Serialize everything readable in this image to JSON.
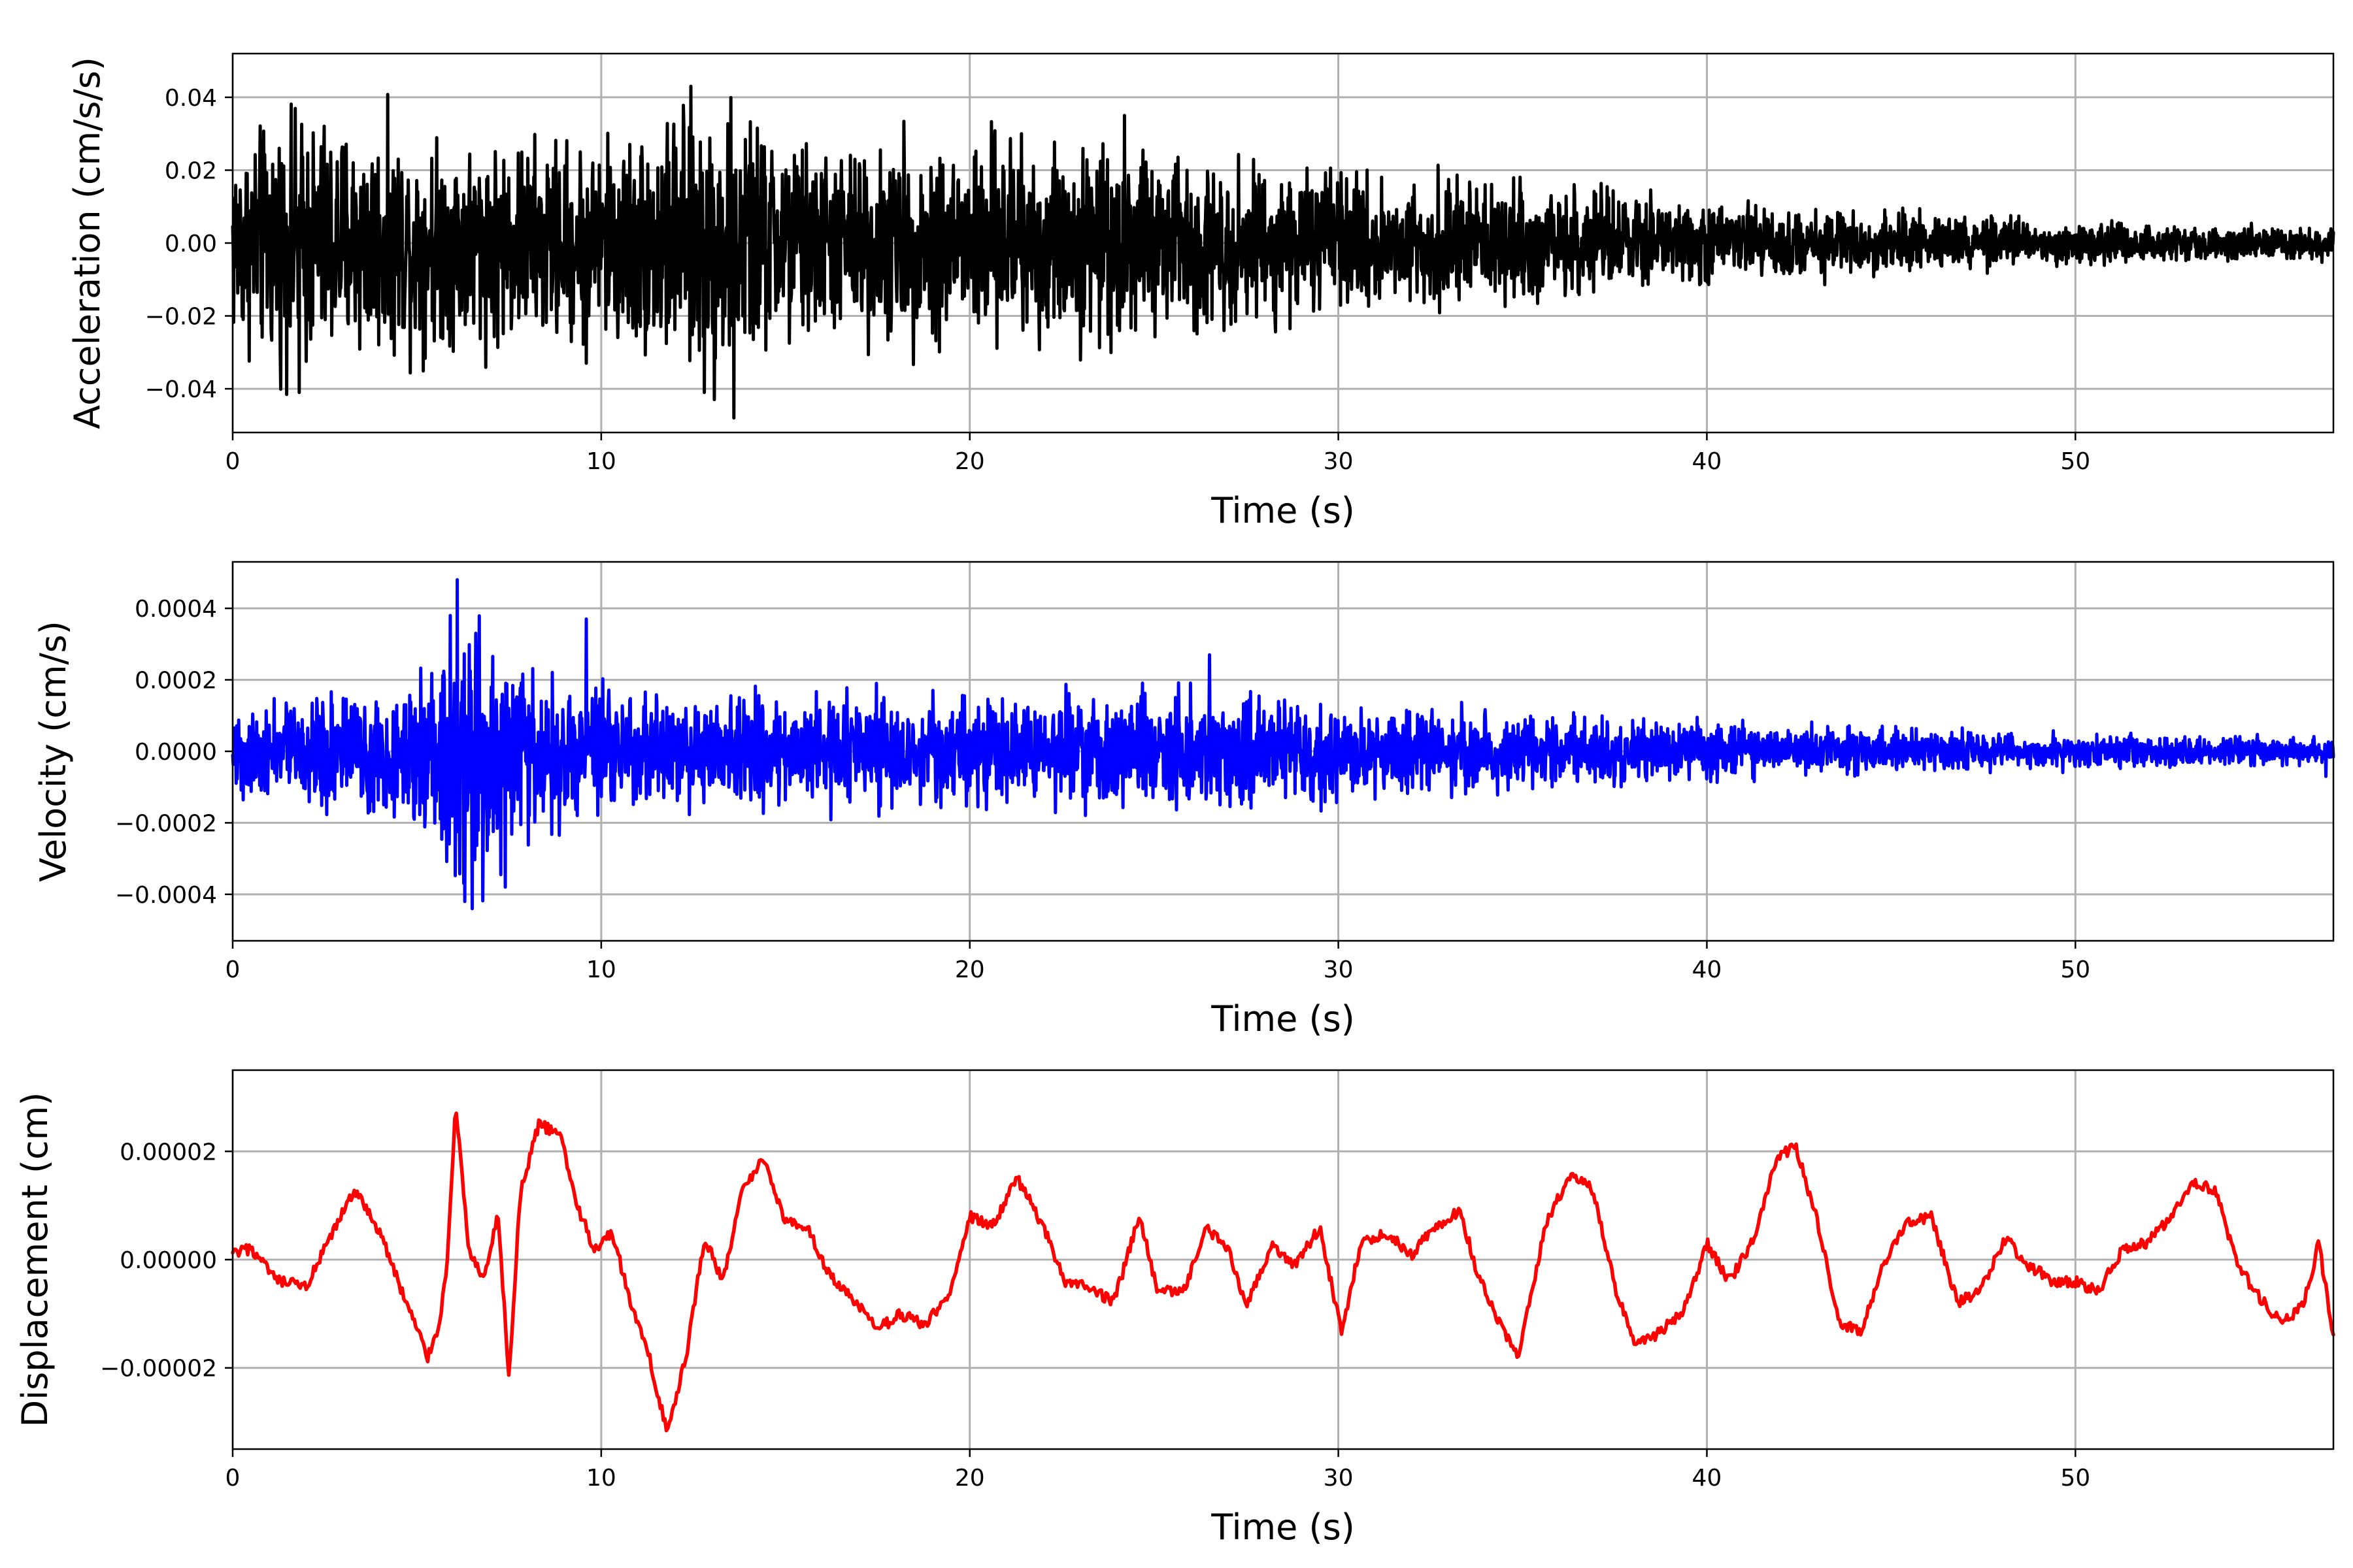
{
  "chart_data": [
    {
      "type": "line",
      "xlabel": "Time (s)",
      "ylabel": "Acceleration (cm/s/s)",
      "xlim": [
        0,
        57
      ],
      "ylim": [
        -0.052,
        0.052
      ],
      "xticks": [
        0,
        10,
        20,
        30,
        40,
        50
      ],
      "xtick_labels": [
        "0",
        "10",
        "20",
        "30",
        "40",
        "50"
      ],
      "yticks": [
        -0.04,
        -0.02,
        0.0,
        0.02,
        0.04
      ],
      "ytick_labels": [
        "−0.04",
        "−0.02",
        "0.00",
        "0.02",
        "0.04"
      ],
      "grid": true,
      "color": "#000000",
      "envelope": {
        "t": [
          0,
          2,
          5,
          10,
          13,
          16,
          20,
          25,
          28,
          31,
          35,
          38,
          42,
          46,
          50,
          53,
          57
        ],
        "amp": [
          0.018,
          0.022,
          0.018,
          0.017,
          0.024,
          0.016,
          0.018,
          0.016,
          0.013,
          0.011,
          0.01,
          0.008,
          0.006,
          0.005,
          0.0035,
          0.003,
          0.0025
        ]
      },
      "peaks": [
        [
          1.8,
          0.036
        ],
        [
          1.8,
          -0.041
        ],
        [
          13.6,
          0.044
        ],
        [
          13.6,
          -0.048
        ],
        [
          12.8,
          -0.041
        ],
        [
          24.2,
          0.035
        ],
        [
          9.6,
          -0.033
        ],
        [
          21.4,
          0.03
        ]
      ]
    },
    {
      "type": "line",
      "xlabel": "Time (s)",
      "ylabel": "Velocity (cm/s)",
      "xlim": [
        0,
        57
      ],
      "ylim": [
        -0.00053,
        0.00053
      ],
      "xticks": [
        0,
        10,
        20,
        30,
        40,
        50
      ],
      "xtick_labels": [
        "0",
        "10",
        "20",
        "30",
        "40",
        "50"
      ],
      "yticks": [
        -0.0004,
        -0.0002,
        0.0,
        0.0002,
        0.0004
      ],
      "ytick_labels": [
        "−0.0004",
        "−0.0002",
        "0.0000",
        "0.0002",
        "0.0004"
      ],
      "grid": true,
      "color": "#0000ff",
      "envelope": {
        "t": [
          0,
          3,
          5,
          6.2,
          8,
          10,
          14,
          20,
          26,
          30,
          34,
          40,
          45,
          50,
          55,
          57
        ],
        "amp": [
          8e-05,
          0.0001,
          0.00014,
          0.00022,
          0.00016,
          0.0001,
          0.0001,
          9e-05,
          0.0001,
          8e-05,
          7e-05,
          5e-05,
          4e-05,
          3e-05,
          2.5e-05,
          2e-05
        ]
      },
      "peaks": [
        [
          6.1,
          0.00048
        ],
        [
          5.9,
          0.00038
        ],
        [
          6.5,
          -0.00044
        ],
        [
          6.3,
          -0.00042
        ],
        [
          7.4,
          -0.00038
        ],
        [
          9.6,
          0.00037
        ],
        [
          26.5,
          0.00027
        ],
        [
          56.8,
          -7e-05
        ]
      ]
    },
    {
      "type": "line",
      "xlabel": "Time (s)",
      "ylabel": "Displacement (cm)",
      "xlim": [
        0,
        57
      ],
      "ylim": [
        -3.5e-05,
        3.5e-05
      ],
      "xticks": [
        0,
        10,
        20,
        30,
        40,
        50
      ],
      "xtick_labels": [
        "0",
        "10",
        "20",
        "30",
        "40",
        "50"
      ],
      "yticks": [
        -2e-05,
        0.0,
        2e-05
      ],
      "ytick_labels": [
        "−0.00002",
        "0.00000",
        "0.00002"
      ],
      "grid": true,
      "color": "#ff0000",
      "x": [
        0,
        0.5,
        1.2,
        2,
        2.8,
        3.3,
        4,
        4.6,
        5.3,
        5.6,
        5.8,
        6.05,
        6.15,
        6.4,
        6.8,
        7.2,
        7.5,
        7.8,
        8.3,
        8.9,
        9.3,
        9.8,
        10.3,
        10.8,
        11.3,
        11.8,
        12.3,
        12.8,
        13.3,
        13.8,
        14.4,
        15,
        15.6,
        16.2,
        16.9,
        17.5,
        18.1,
        18.8,
        19.4,
        20,
        20.6,
        21.3,
        22,
        22.6,
        23.3,
        23.9,
        24.6,
        25.1,
        25.8,
        26.4,
        27,
        27.5,
        28.2,
        28.8,
        29.5,
        30.1,
        30.6,
        31.3,
        32,
        32.6,
        33.3,
        33.8,
        34.4,
        34.9,
        35.6,
        36.3,
        36.9,
        37.5,
        38.1,
        38.8,
        39.4,
        40,
        40.6,
        41.3,
        41.9,
        42.4,
        43,
        43.6,
        44.2,
        44.9,
        45.5,
        46.1,
        46.8,
        47.4,
        48.1,
        48.7,
        49.4,
        50,
        50.6,
        51.3,
        51.9,
        52.6,
        53.2,
        53.8,
        54.4,
        55,
        55.6,
        56.2,
        56.6,
        57
      ],
      "y": [
        1e-06,
        2e-06,
        -4e-06,
        -5e-06,
        6e-06,
        1.3e-05,
        5e-06,
        -6e-06,
        -1.8e-05,
        -1.2e-05,
        -2e-06,
        2.8e-05,
        2.2e-05,
        2e-06,
        -4e-06,
        8e-06,
        -2.2e-05,
        1.2e-05,
        2.5e-05,
        2.3e-05,
        1.1e-05,
        2e-06,
        5e-06,
        -8e-06,
        -1.8e-05,
        -3.2e-05,
        -1.8e-05,
        4e-06,
        -4e-06,
        1.2e-05,
        1.9e-05,
        7e-06,
        6e-06,
        -3e-06,
        -8e-06,
        -1.3e-05,
        -1e-05,
        -1.2e-05,
        -7e-06,
        8e-06,
        6e-06,
        1.5e-05,
        6e-06,
        -4e-06,
        -5e-06,
        -8e-06,
        8e-06,
        -6e-06,
        -6e-06,
        6e-06,
        2e-06,
        -9e-06,
        3e-06,
        -1e-06,
        6e-06,
        -1.4e-05,
        3e-06,
        5e-06,
        1e-06,
        6e-06,
        9e-06,
        -3e-06,
        -1.2e-05,
        -1.8e-05,
        6e-06,
        1.6e-05,
        1.3e-05,
        -5e-06,
        -1.6e-05,
        -1.3e-05,
        -9e-06,
        3e-06,
        -4e-06,
        4e-06,
        1.9e-05,
        2.1e-05,
        7e-06,
        -1.2e-05,
        -1.3e-05,
        1e-06,
        7e-06,
        8e-06,
        -8e-06,
        -6e-06,
        4e-06,
        -1e-06,
        -4e-06,
        -4e-06,
        -6e-06,
        2e-06,
        3e-06,
        8e-06,
        1.4e-05,
        1.3e-05,
        -1e-06,
        -7e-06,
        -1.2e-05,
        -8e-06,
        3e-06,
        -1.4e-05
      ]
    }
  ]
}
